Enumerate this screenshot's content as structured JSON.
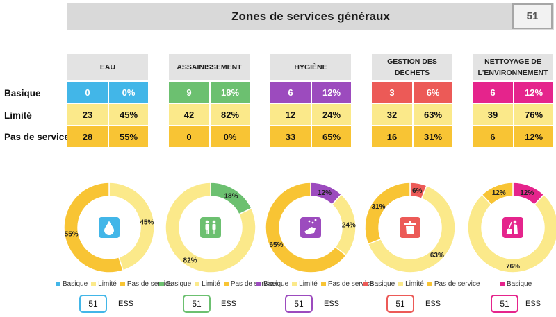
{
  "title": "Zones de services généraux",
  "total_count": "51",
  "row_labels": [
    "Basique",
    "Limité",
    "Pas de service"
  ],
  "ess_label": "ESS",
  "colors": {
    "limite": "#fbe98a",
    "pas_de_service": "#f8c434",
    "header_bg": "#e3e3e3"
  },
  "chart_data": [
    {
      "type": "pie",
      "title": "EAU",
      "icon": "water-drop-icon",
      "basic_color": "#42b6e8",
      "categories": [
        "Basique",
        "Limité",
        "Pas de service"
      ],
      "counts": [
        0,
        23,
        28
      ],
      "percents": [
        "0%",
        "45%",
        "55%"
      ],
      "values": [
        0,
        45,
        55
      ],
      "legend": [
        "Basique",
        "Limité",
        "Pas de service"
      ],
      "ess": "51"
    },
    {
      "type": "pie",
      "title": "ASSAINISSEMENT",
      "icon": "toilet-people-icon",
      "basic_color": "#6cc070",
      "categories": [
        "Basique",
        "Limité",
        "Pas de service"
      ],
      "counts": [
        9,
        42,
        0
      ],
      "percents": [
        "18%",
        "82%",
        "0%"
      ],
      "values": [
        18,
        82,
        0
      ],
      "legend": [
        "Basique",
        "Limité",
        "Pas de service"
      ],
      "ess": "51"
    },
    {
      "type": "pie",
      "title": "HYGIÈNE",
      "icon": "handwashing-icon",
      "basic_color": "#9c4bbe",
      "categories": [
        "Basique",
        "Limité",
        "Pas de service"
      ],
      "counts": [
        6,
        12,
        33
      ],
      "percents": [
        "12%",
        "24%",
        "65%"
      ],
      "values": [
        12,
        24,
        65
      ],
      "legend": [
        "Basique",
        "Limité",
        "Pas de service"
      ],
      "ess": "51"
    },
    {
      "type": "pie",
      "title": "GESTION DES DÉCHETS",
      "icon": "waste-bin-icon",
      "basic_color": "#ec5a57",
      "categories": [
        "Basique",
        "Limité",
        "Pas de service"
      ],
      "counts": [
        3,
        32,
        16
      ],
      "percents": [
        "6%",
        "63%",
        "31%"
      ],
      "values": [
        6,
        63,
        31
      ],
      "legend": [
        "Basique",
        "Limité",
        "Pas de service"
      ],
      "ess": "51"
    },
    {
      "type": "pie",
      "title": "NETTOYAGE DE L'ENVIRONNEMENT",
      "icon": "cleaning-icon",
      "basic_color": "#e5248c",
      "categories": [
        "Basique",
        "Limité",
        "Pas de service"
      ],
      "counts": [
        6,
        39,
        6
      ],
      "percents": [
        "12%",
        "76%",
        "12%"
      ],
      "values": [
        12,
        76,
        12
      ],
      "legend": [
        "Basique"
      ],
      "ess": "51"
    }
  ]
}
